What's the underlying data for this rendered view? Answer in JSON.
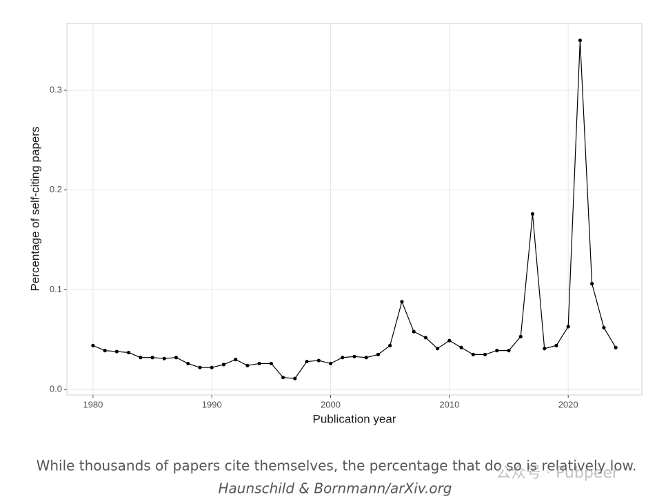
{
  "chart_data": {
    "type": "line",
    "x_label": "Publication year",
    "y_label": "Percentage of self-citing papers",
    "x": [
      1980,
      1981,
      1982,
      1983,
      1984,
      1985,
      1986,
      1987,
      1988,
      1989,
      1990,
      1991,
      1992,
      1993,
      1994,
      1995,
      1996,
      1997,
      1998,
      1999,
      2000,
      2001,
      2002,
      2003,
      2004,
      2005,
      2006,
      2007,
      2008,
      2009,
      2010,
      2011,
      2012,
      2013,
      2014,
      2015,
      2016,
      2017,
      2018,
      2019,
      2020,
      2021,
      2022,
      2023,
      2024
    ],
    "values": [
      0.044,
      0.039,
      0.038,
      0.037,
      0.032,
      0.032,
      0.031,
      0.032,
      0.026,
      0.022,
      0.022,
      0.025,
      0.03,
      0.024,
      0.026,
      0.026,
      0.012,
      0.011,
      0.028,
      0.029,
      0.026,
      0.032,
      0.033,
      0.032,
      0.035,
      0.044,
      0.088,
      0.058,
      0.052,
      0.041,
      0.049,
      0.042,
      0.035,
      0.035,
      0.039,
      0.039,
      0.053,
      0.176,
      0.041,
      0.044,
      0.063,
      0.35,
      0.106,
      0.062,
      0.042
    ],
    "color": "#000000",
    "xlim": [
      1977.8,
      2026.2
    ],
    "ylim": [
      -0.0055,
      0.367
    ],
    "xticks": [
      1980,
      1990,
      2000,
      2010,
      2020
    ],
    "yticks": [
      {
        "value": 0,
        "label": "0.0"
      },
      0.1,
      0.2,
      0.3
    ],
    "grid": true
  },
  "caption": "While thousands of papers cite themselves, the percentage that do so is relatively low.",
  "source": "Haunschild & Bornmann/arXiv.org",
  "watermark": "公众号 · Pubpeer"
}
